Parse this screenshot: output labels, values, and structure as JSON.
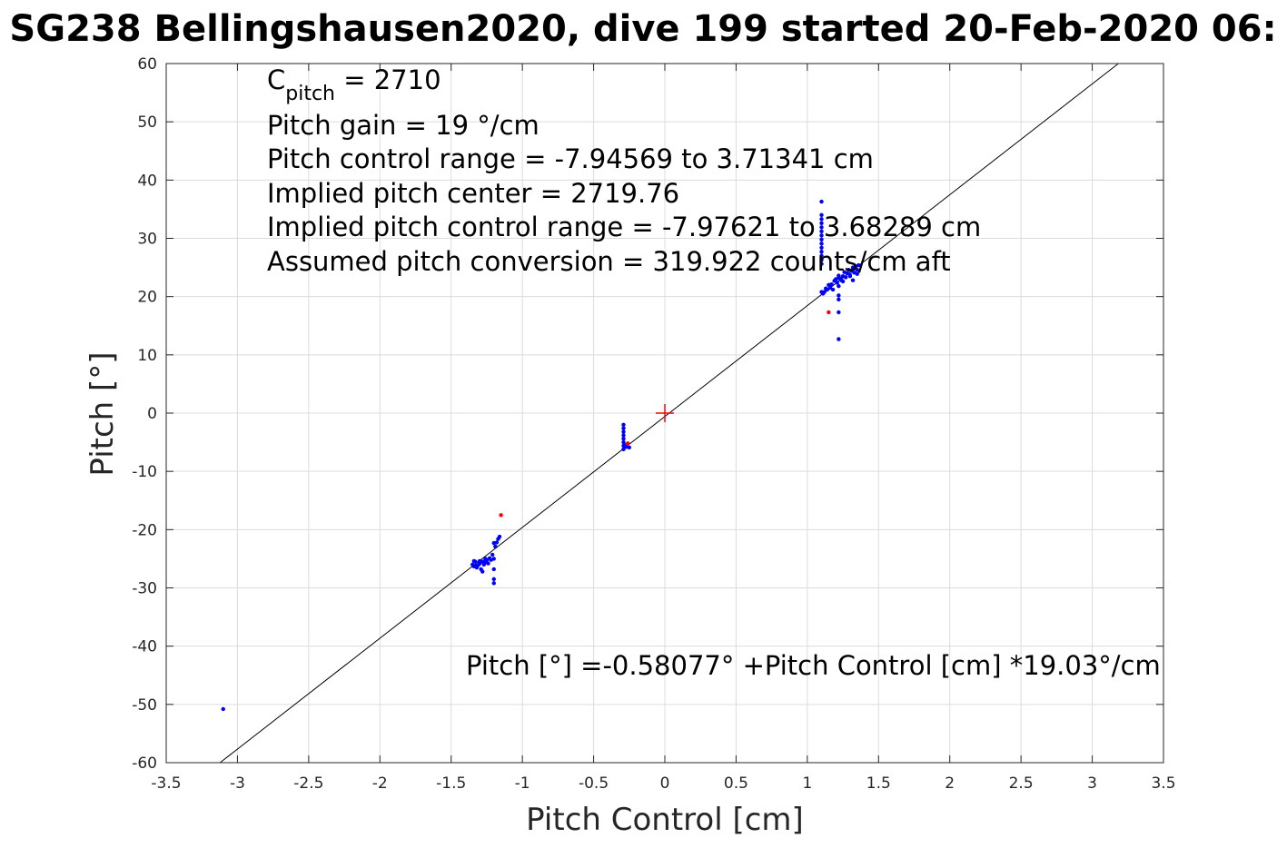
{
  "title": "SG238 Bellingshausen2020, dive 199 started 20-Feb-2020 06:",
  "chart_data": {
    "type": "scatter",
    "xlabel": "Pitch Control [cm]",
    "ylabel": "Pitch [°]",
    "xlim": [
      -3.5,
      3.5
    ],
    "ylim": [
      -60,
      60
    ],
    "xticks": [
      -3.5,
      -3,
      -2.5,
      -2,
      -1.5,
      -1,
      -0.5,
      0,
      0.5,
      1,
      1.5,
      2,
      2.5,
      3,
      3.5
    ],
    "yticks": [
      -60,
      -50,
      -40,
      -30,
      -20,
      -10,
      0,
      10,
      20,
      30,
      40,
      50,
      60
    ],
    "xtick_labels": [
      "-3.5",
      "-3",
      "-2.5",
      "-2",
      "-1.5",
      "-1",
      "-0.5",
      "0",
      "0.5",
      "1",
      "1.5",
      "2",
      "2.5",
      "3",
      "3.5"
    ],
    "ytick_labels": [
      "-60",
      "-50",
      "-40",
      "-30",
      "-20",
      "-10",
      "0",
      "10",
      "20",
      "30",
      "40",
      "50",
      "60"
    ],
    "grid": true,
    "annotations": {
      "c_pitch_prefix": "C",
      "c_pitch_sub": "pitch",
      "c_pitch_value": " = 2710",
      "pitch_gain": "Pitch gain = 19 °/cm",
      "control_range": "Pitch control range = -7.94569 to 3.71341 cm",
      "implied_center": "Implied pitch center = 2719.76",
      "implied_range": "Implied pitch control range = -7.97621 to 3.68289 cm",
      "conversion": "Assumed pitch conversion = 319.922 counts/cm aft",
      "fit_equation": "Pitch [°] =-0.58077° +Pitch Control [cm] *19.03°/cm"
    },
    "fit_line": {
      "intercept": -0.58077,
      "slope": 19.03,
      "color": "#000000"
    },
    "center_marker": {
      "x": 0,
      "y": 0,
      "color": "#ff0000"
    },
    "series": [
      {
        "color": "#0000ff",
        "x": [
          -3.1,
          -1.35,
          -1.34,
          -1.33,
          -1.32,
          -1.31,
          -1.3,
          -1.29,
          -1.28,
          -1.27,
          -1.26,
          -1.25,
          -1.24,
          -1.23,
          -1.22,
          -1.21,
          -1.2,
          -1.2,
          -1.2,
          -1.2,
          -1.2,
          -1.19,
          -1.18,
          -1.17,
          -1.16,
          -1.34,
          -1.32,
          -1.3,
          -1.28,
          -1.26,
          -0.29,
          -0.29,
          -0.29,
          -0.29,
          -0.29,
          -0.29,
          -0.29,
          -0.29,
          -0.28,
          -0.27,
          -0.25,
          1.1,
          1.1,
          1.1,
          1.1,
          1.1,
          1.1,
          1.1,
          1.1,
          1.1,
          1.1,
          1.1,
          1.1,
          1.1,
          1.1,
          1.1,
          1.11,
          1.12,
          1.13,
          1.14,
          1.15,
          1.16,
          1.17,
          1.18,
          1.19,
          1.2,
          1.21,
          1.22,
          1.23,
          1.24,
          1.25,
          1.26,
          1.27,
          1.28,
          1.29,
          1.3,
          1.31,
          1.32,
          1.33,
          1.34,
          1.35,
          1.36,
          1.22,
          1.22,
          1.22,
          1.22,
          1.22,
          1.22,
          1.25,
          1.3,
          1.32,
          1.35
        ],
        "y": [
          -50.8,
          -26,
          -26.3,
          -25.5,
          -26.5,
          -26.1,
          -25.8,
          -26.8,
          -25.5,
          -26,
          -25.6,
          -25.2,
          -25.8,
          -24.9,
          -25.2,
          -24.3,
          -25,
          -26.8,
          -28.5,
          -29.2,
          -22.3,
          -22.9,
          -22.2,
          -21.6,
          -21.2,
          -25.4,
          -26.2,
          -25.4,
          -27.2,
          -25,
          -2,
          -2.6,
          -3.2,
          -3.8,
          -4.4,
          -5,
          -5.6,
          -6.2,
          -5.5,
          -5.8,
          -5.9,
          36.3,
          34,
          33.3,
          32.6,
          31.9,
          31.2,
          30.5,
          29.8,
          29.1,
          28.4,
          27.7,
          27,
          26.3,
          25.6,
          20.8,
          20.5,
          20.8,
          21.4,
          21.2,
          22,
          21.5,
          22.1,
          21.2,
          22.7,
          23,
          22.4,
          23.6,
          23.1,
          22.8,
          23.5,
          24.2,
          23.3,
          24,
          24.6,
          23.7,
          24.4,
          25,
          24.1,
          25.2,
          24.6,
          25.4,
          12.7,
          17.3,
          19.5,
          20.2,
          21.8,
          23.2,
          22.6,
          23.5,
          22.8,
          23.9
        ]
      },
      {
        "color": "#ff0000",
        "x": [
          -1.15,
          1.15,
          -0.26
        ],
        "y": [
          -17.5,
          17.3,
          -5.2
        ]
      }
    ]
  }
}
